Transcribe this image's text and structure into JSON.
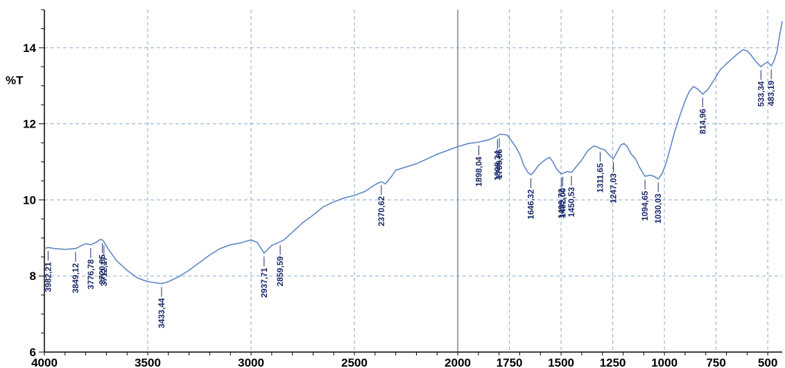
{
  "chart_data": {
    "type": "line",
    "ylabel": "%T",
    "xlabel": "",
    "xlim": [
      4000,
      430
    ],
    "ylim": [
      6,
      15
    ],
    "x_ticks": [
      4000,
      3500,
      3000,
      2500,
      2000,
      1750,
      1500,
      1250,
      1000,
      750,
      500
    ],
    "y_ticks": [
      6,
      8,
      10,
      12,
      14
    ],
    "grid": true,
    "series": [
      {
        "x": [
          4000,
          3982,
          3950,
          3900,
          3849,
          3820,
          3800,
          3776,
          3750,
          3730,
          3720,
          3712,
          3690,
          3650,
          3600,
          3550,
          3500,
          3433,
          3400,
          3350,
          3300,
          3250,
          3200,
          3150,
          3100,
          3050,
          3000,
          2970,
          2937,
          2900,
          2859,
          2840,
          2800,
          2750,
          2700,
          2650,
          2600,
          2550,
          2500,
          2450,
          2400,
          2370,
          2350,
          2320,
          2300,
          2200,
          2100,
          2000,
          1950,
          1898,
          1850,
          1808,
          1799,
          1780,
          1760,
          1740,
          1720,
          1700,
          1680,
          1660,
          1646,
          1630,
          1610,
          1590,
          1570,
          1555,
          1540,
          1520,
          1499,
          1492,
          1480,
          1470,
          1450,
          1430,
          1400,
          1370,
          1340,
          1320,
          1311,
          1290,
          1270,
          1247,
          1230,
          1210,
          1195,
          1180,
          1160,
          1140,
          1120,
          1094,
          1070,
          1050,
          1030,
          1010,
          990,
          970,
          950,
          920,
          900,
          880,
          860,
          840,
          815,
          790,
          760,
          730,
          700,
          650,
          620,
          600,
          580,
          560,
          533,
          515,
          500,
          483,
          470,
          455,
          440,
          430
        ],
        "y": [
          8.72,
          8.75,
          8.72,
          8.7,
          8.72,
          8.8,
          8.85,
          8.82,
          8.88,
          8.96,
          8.95,
          8.9,
          8.7,
          8.4,
          8.15,
          7.95,
          7.85,
          7.8,
          7.85,
          7.98,
          8.15,
          8.35,
          8.55,
          8.72,
          8.82,
          8.87,
          8.95,
          8.88,
          8.6,
          8.8,
          8.9,
          8.95,
          9.15,
          9.4,
          9.6,
          9.82,
          9.95,
          10.05,
          10.12,
          10.22,
          10.4,
          10.48,
          10.42,
          10.62,
          10.78,
          10.95,
          11.2,
          11.4,
          11.48,
          11.52,
          11.58,
          11.68,
          11.72,
          11.72,
          11.7,
          11.55,
          11.4,
          11.2,
          10.9,
          10.72,
          10.66,
          10.75,
          10.9,
          11.0,
          11.08,
          11.12,
          11.0,
          10.8,
          10.68,
          10.7,
          10.72,
          10.75,
          10.72,
          10.85,
          11.05,
          11.3,
          11.42,
          11.38,
          11.35,
          11.32,
          11.2,
          11.08,
          11.25,
          11.45,
          11.48,
          11.4,
          11.2,
          11.08,
          10.85,
          10.62,
          10.65,
          10.62,
          10.55,
          10.7,
          11.0,
          11.4,
          11.8,
          12.3,
          12.6,
          12.85,
          12.98,
          12.92,
          12.78,
          12.9,
          13.15,
          13.42,
          13.58,
          13.82,
          13.95,
          13.92,
          13.8,
          13.65,
          13.5,
          13.58,
          13.62,
          13.52,
          13.65,
          13.9,
          14.4,
          14.7
        ]
      }
    ],
    "peak_labels": [
      {
        "x": 3982,
        "y": 8.75,
        "label": "3982,21"
      },
      {
        "x": 3849,
        "y": 8.72,
        "label": "3849,12"
      },
      {
        "x": 3776,
        "y": 8.82,
        "label": "3776,78"
      },
      {
        "x": 3720,
        "y": 8.95,
        "label": "3720,85"
      },
      {
        "x": 3712,
        "y": 8.9,
        "label": "3712,17"
      },
      {
        "x": 3433,
        "y": 7.8,
        "label": "3433,44"
      },
      {
        "x": 2937,
        "y": 8.6,
        "label": "2937,71"
      },
      {
        "x": 2859,
        "y": 8.9,
        "label": "2859,59"
      },
      {
        "x": 2370,
        "y": 10.48,
        "label": "2370,62"
      },
      {
        "x": 1898,
        "y": 11.52,
        "label": "1898,04"
      },
      {
        "x": 1808,
        "y": 11.68,
        "label": "1808,34"
      },
      {
        "x": 1799,
        "y": 11.72,
        "label": "1799,66"
      },
      {
        "x": 1646,
        "y": 10.66,
        "label": "1646,32"
      },
      {
        "x": 1499,
        "y": 10.68,
        "label": "1499,72"
      },
      {
        "x": 1492,
        "y": 10.7,
        "label": "1492,00"
      },
      {
        "x": 1450,
        "y": 10.72,
        "label": "1450,53"
      },
      {
        "x": 1311,
        "y": 11.35,
        "label": "1311,65"
      },
      {
        "x": 1247,
        "y": 11.08,
        "label": "1247,03"
      },
      {
        "x": 1094,
        "y": 10.62,
        "label": "1094,65"
      },
      {
        "x": 1030,
        "y": 10.55,
        "label": "1030,03"
      },
      {
        "x": 815,
        "y": 12.78,
        "label": "814,96"
      },
      {
        "x": 533,
        "y": 13.5,
        "label": "533,34"
      },
      {
        "x": 483,
        "y": 13.52,
        "label": "483,19"
      }
    ]
  }
}
